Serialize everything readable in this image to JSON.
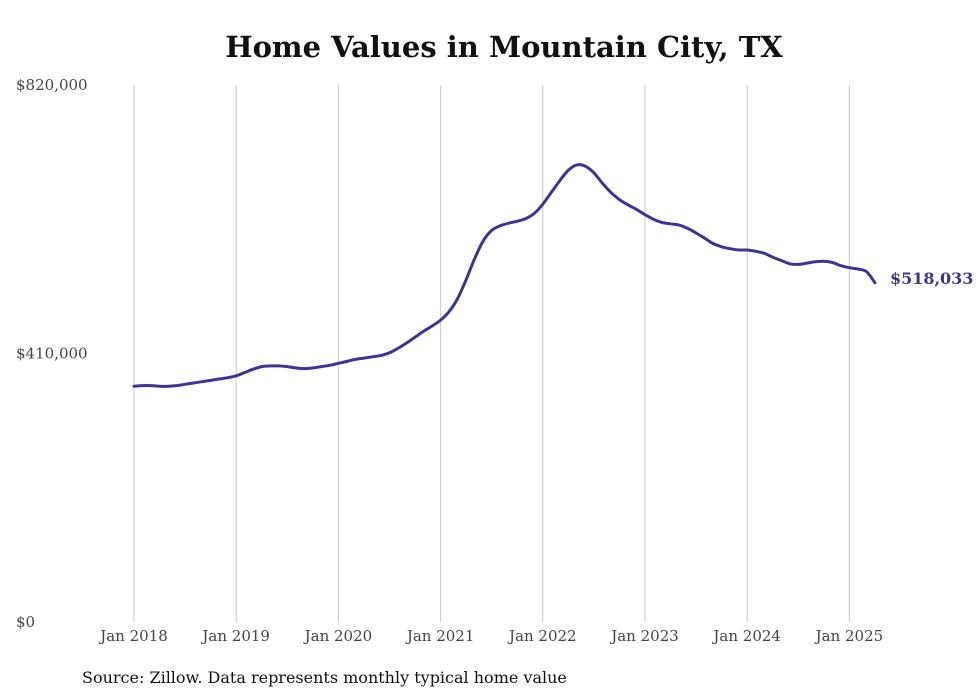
{
  "chart_data": {
    "type": "line",
    "title": "Home Values in Mountain City, TX",
    "source": "Source: Zillow. Data represents monthly typical home value",
    "xlabel": "",
    "ylabel": "",
    "x_ticks": [
      "Jan 2018",
      "Jan 2019",
      "Jan 2020",
      "Jan 2021",
      "Jan 2022",
      "Jan 2023",
      "Jan 2024",
      "Jan 2025"
    ],
    "y_ticks": [
      0,
      410000,
      820000
    ],
    "y_tick_labels": [
      "$0",
      "$410,000",
      "$820,000"
    ],
    "ylim": [
      0,
      820000
    ],
    "xlim": [
      "2018-01",
      "2025-04"
    ],
    "grid": "vertical",
    "line_color": "#3d3590",
    "end_label": "$518,033",
    "series": [
      {
        "x": [
          "2018-01",
          "2018-02",
          "2018-03",
          "2018-04",
          "2018-05",
          "2018-06",
          "2018-07",
          "2018-08",
          "2018-09",
          "2018-10",
          "2018-11",
          "2018-12",
          "2019-01",
          "2019-02",
          "2019-03",
          "2019-04",
          "2019-05",
          "2019-06",
          "2019-07",
          "2019-08",
          "2019-09",
          "2019-10",
          "2019-11",
          "2019-12",
          "2020-01",
          "2020-02",
          "2020-03",
          "2020-04",
          "2020-05",
          "2020-06",
          "2020-07",
          "2020-08",
          "2020-09",
          "2020-10",
          "2020-11",
          "2020-12",
          "2021-01",
          "2021-02",
          "2021-03",
          "2021-04",
          "2021-05",
          "2021-06",
          "2021-07",
          "2021-08",
          "2021-09",
          "2021-10",
          "2021-11",
          "2021-12",
          "2022-01",
          "2022-02",
          "2022-03",
          "2022-04",
          "2022-05",
          "2022-06",
          "2022-07",
          "2022-08",
          "2022-09",
          "2022-10",
          "2022-11",
          "2022-12",
          "2023-01",
          "2023-02",
          "2023-03",
          "2023-04",
          "2023-05",
          "2023-06",
          "2023-07",
          "2023-08",
          "2023-09",
          "2023-10",
          "2023-11",
          "2023-12",
          "2024-01",
          "2024-02",
          "2024-03",
          "2024-04",
          "2024-05",
          "2024-06",
          "2024-07",
          "2024-08",
          "2024-09",
          "2024-10",
          "2024-11",
          "2024-12",
          "2025-01",
          "2025-02",
          "2025-03",
          "2025-04"
        ],
        "values": [
          360000,
          361000,
          361000,
          360000,
          360000,
          361000,
          363000,
          365000,
          367000,
          369000,
          371000,
          373000,
          376000,
          381000,
          386000,
          390000,
          391000,
          391000,
          390000,
          388000,
          387000,
          388000,
          390000,
          392000,
          395000,
          398000,
          401000,
          403000,
          405000,
          407000,
          411000,
          418000,
          426000,
          435000,
          444000,
          452000,
          461000,
          474000,
          494000,
          523000,
          555000,
          582000,
          598000,
          605000,
          609000,
          612000,
          616000,
          624000,
          638000,
          656000,
          674000,
          690000,
          698000,
          696000,
          686000,
          670000,
          656000,
          645000,
          637000,
          630000,
          622000,
          615000,
          610000,
          608000,
          606000,
          601000,
          594000,
          586000,
          578000,
          573000,
          570000,
          568000,
          568000,
          566000,
          563000,
          557000,
          552000,
          547000,
          546000,
          548000,
          550000,
          551000,
          549000,
          544000,
          541000,
          539000,
          535000,
          518033
        ]
      }
    ]
  }
}
